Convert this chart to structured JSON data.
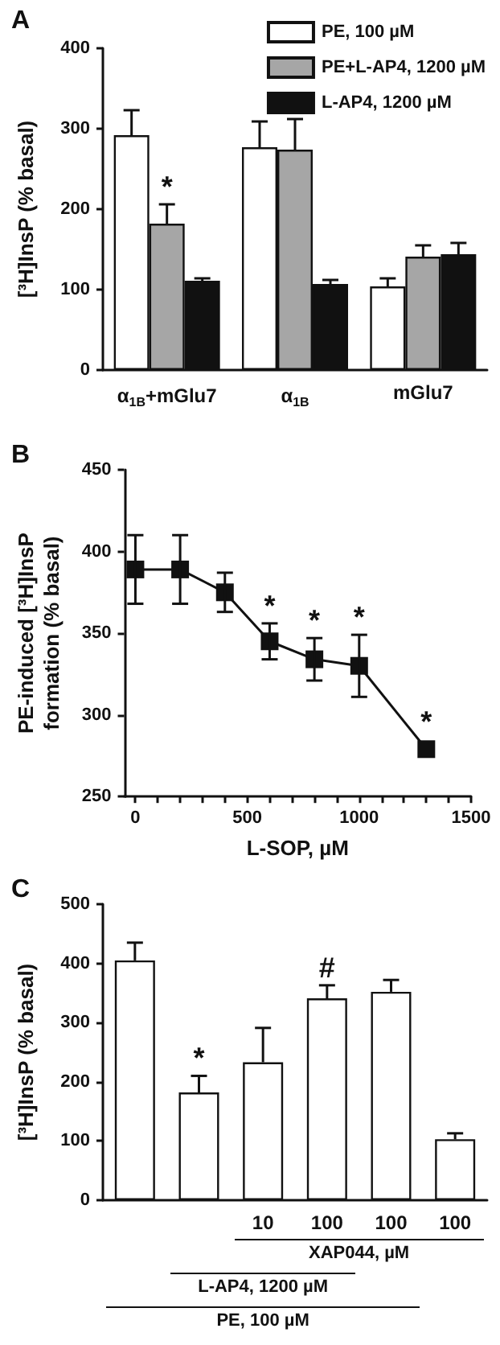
{
  "chart_data": [
    {
      "type": "bar",
      "title": "A",
      "ylabel": "[³H]InsP (% basal)",
      "categories": [
        "α$_{1B}$+mGlu7",
        "α$_{1B}$",
        "mGlu7"
      ],
      "series": [
        {
          "name": "PE, 100 µM",
          "color": "#ffffff",
          "values": [
            292,
            277,
            104
          ],
          "errors": [
            31,
            32,
            10
          ]
        },
        {
          "name": "PE+L-AP4, 1200 µM",
          "color": "#a6a6a6",
          "values": [
            182,
            274,
            141
          ],
          "errors": [
            24,
            38,
            14
          ],
          "value_labels": [
            "*",
            null,
            null
          ]
        },
        {
          "name": "L-AP4, 1200 µM",
          "color": "#111111",
          "values": [
            111,
            107,
            144
          ],
          "errors": [
            3,
            5,
            14
          ]
        }
      ],
      "ylim": [
        0,
        400
      ],
      "yticks": [
        0,
        100,
        200,
        300,
        400
      ],
      "grid": false,
      "legend": "top right"
    },
    {
      "type": "line",
      "title": "B",
      "xlabel": "L-SOP, µM",
      "ylabel": "PE-induced [³H]InsP\nformation (% basal)",
      "series": [
        {
          "color": "#111111",
          "x": [
            0,
            200,
            400,
            600,
            800,
            1000,
            1300
          ],
          "values": [
            389,
            389,
            375,
            345,
            334,
            330,
            279
          ],
          "errors": [
            21,
            21,
            12,
            11,
            13,
            19,
            null
          ],
          "value_labels": [
            null,
            null,
            null,
            "*",
            "*",
            "*",
            "*"
          ]
        }
      ],
      "xlim": [
        -50,
        1500
      ],
      "xticks": [
        0,
        {
          "value": 100,
          "label": null
        },
        {
          "value": 200,
          "label": null
        },
        {
          "value": 300,
          "label": null
        },
        {
          "value": 400,
          "label": null
        },
        500,
        {
          "value": 600,
          "label": null
        },
        {
          "value": 700,
          "label": null
        },
        {
          "value": 800,
          "label": null
        },
        {
          "value": 900,
          "label": null
        },
        1000,
        {
          "value": 1100,
          "label": null
        },
        {
          "value": 1200,
          "label": null
        },
        {
          "value": 1300,
          "label": null
        },
        {
          "value": 1400,
          "label": null
        },
        1500
      ],
      "ylim": [
        250,
        450
      ],
      "yticks": [
        250,
        300,
        350,
        400,
        450
      ],
      "grid": false,
      "marker": "square",
      "line_style": "solid"
    },
    {
      "type": "bar",
      "title": "C",
      "ylabel": "[³H]InsP (% basal)",
      "categories": [
        null,
        null,
        "10",
        "100",
        "100",
        "100"
      ],
      "series": [
        {
          "color": "#ffffff",
          "values": [
            405,
            182,
            233,
            341,
            352,
            103
          ],
          "errors": [
            30,
            28,
            58,
            22,
            20,
            10
          ],
          "value_labels": [
            null,
            "*",
            null,
            "#",
            null,
            null
          ]
        }
      ],
      "ylim": [
        0,
        500
      ],
      "yticks": [
        0,
        100,
        200,
        300,
        400,
        500
      ],
      "grid": false,
      "annotations": [
        "XAP044, µM",
        "L-AP4, 1200 µM",
        "PE, 100 µM"
      ]
    }
  ]
}
